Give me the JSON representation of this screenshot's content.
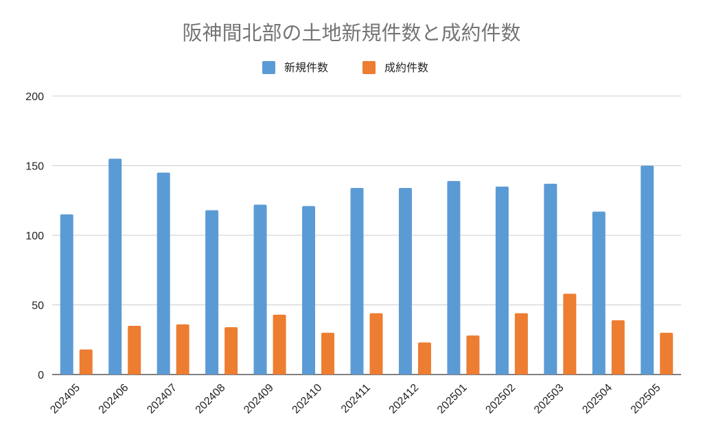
{
  "chart_data": {
    "type": "bar",
    "title": "阪神間北部の土地新規件数と成約件数",
    "xlabel": "",
    "ylabel": "",
    "categories": [
      "202405",
      "202406",
      "202407",
      "202408",
      "202409",
      "202410",
      "202411",
      "202412",
      "202501",
      "202502",
      "202503",
      "202504",
      "202505"
    ],
    "series": [
      {
        "name": "新規件数",
        "color": "#5b9bd5",
        "values": [
          115,
          155,
          145,
          118,
          122,
          121,
          134,
          134,
          139,
          135,
          137,
          117,
          150
        ]
      },
      {
        "name": "成約件数",
        "color": "#ed7d31",
        "values": [
          18,
          35,
          36,
          34,
          43,
          30,
          44,
          23,
          28,
          44,
          58,
          39,
          30
        ]
      }
    ],
    "ylim": [
      0,
      200
    ],
    "yticks": [
      0,
      50,
      100,
      150,
      200
    ],
    "grid": true,
    "legend_position": "top-center"
  }
}
